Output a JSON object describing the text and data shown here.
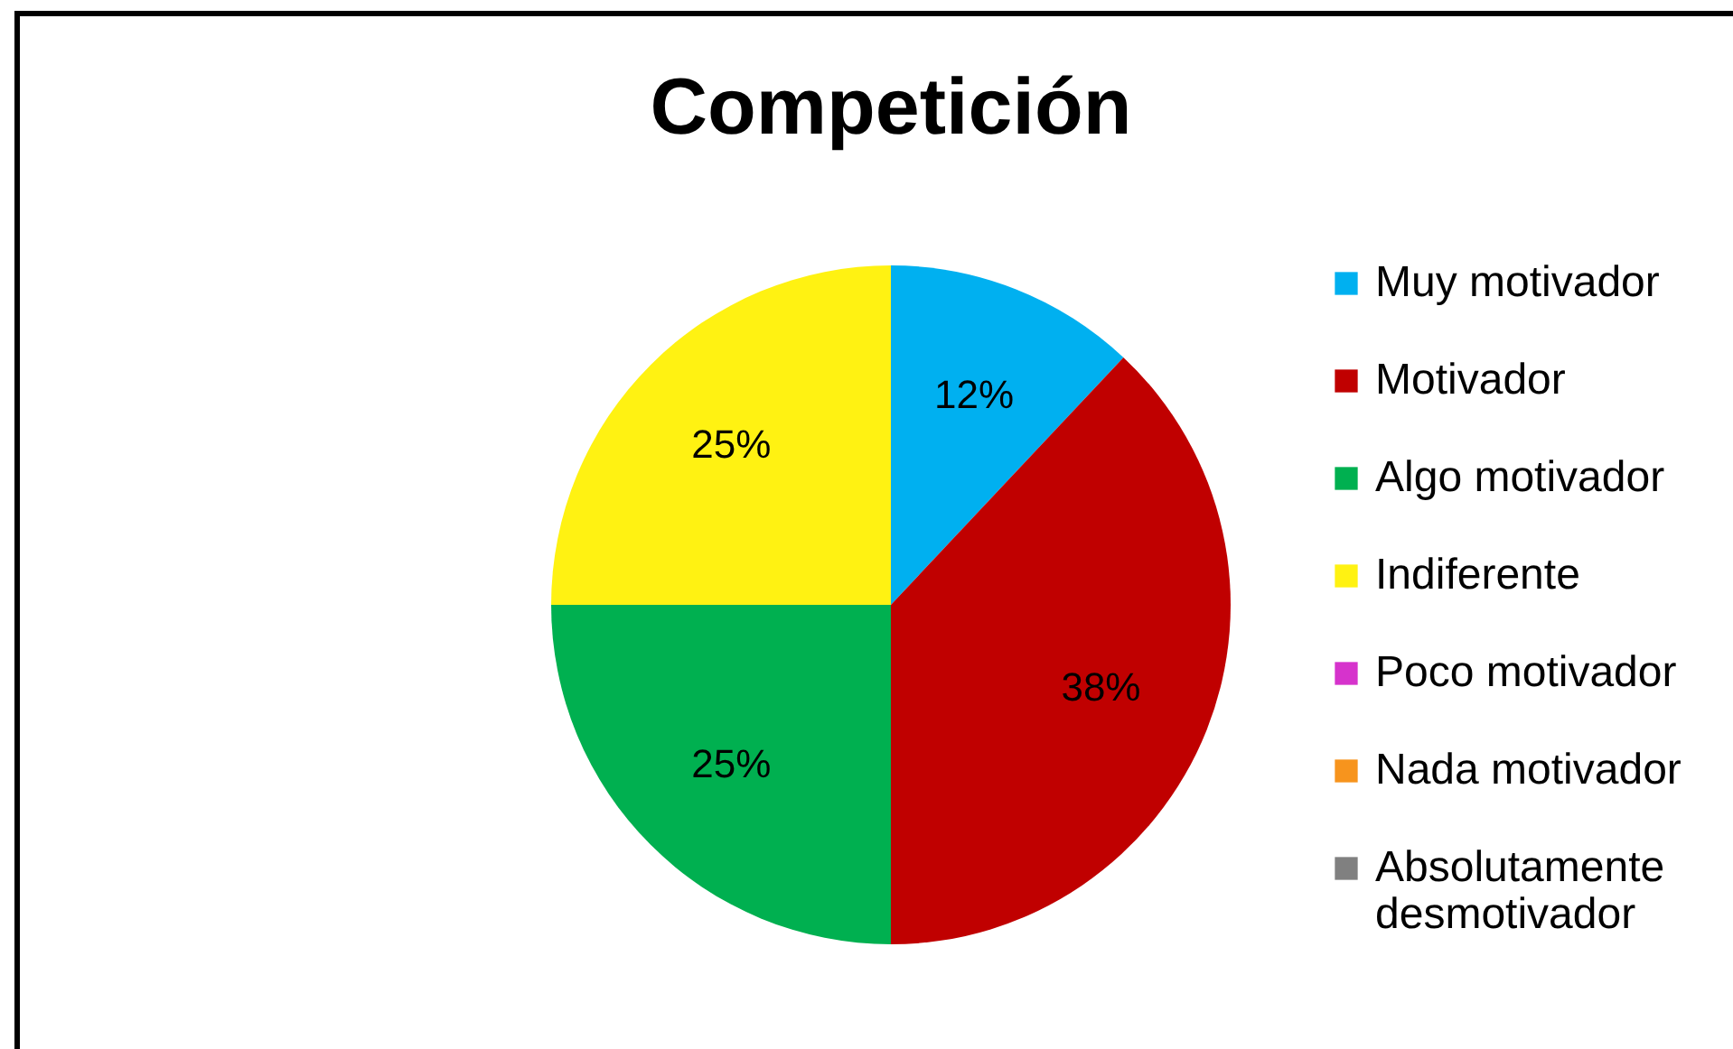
{
  "chart_data": {
    "type": "pie",
    "title": "Competición",
    "categories": [
      "Muy motivador",
      "Motivador",
      "Algo motivador",
      "Indiferente",
      "Poco motivador",
      "Nada motivador",
      "Absolutamente desmotivador"
    ],
    "values": [
      12,
      38,
      25,
      25,
      0,
      0,
      0
    ],
    "colors": [
      "#00b0f0",
      "#c00000",
      "#00b050",
      "#fff212",
      "#d633cc",
      "#f7941d",
      "#808080"
    ],
    "value_labels": [
      "12%",
      "38%",
      "25%",
      "25%",
      null,
      null,
      null
    ],
    "legend": "right"
  }
}
